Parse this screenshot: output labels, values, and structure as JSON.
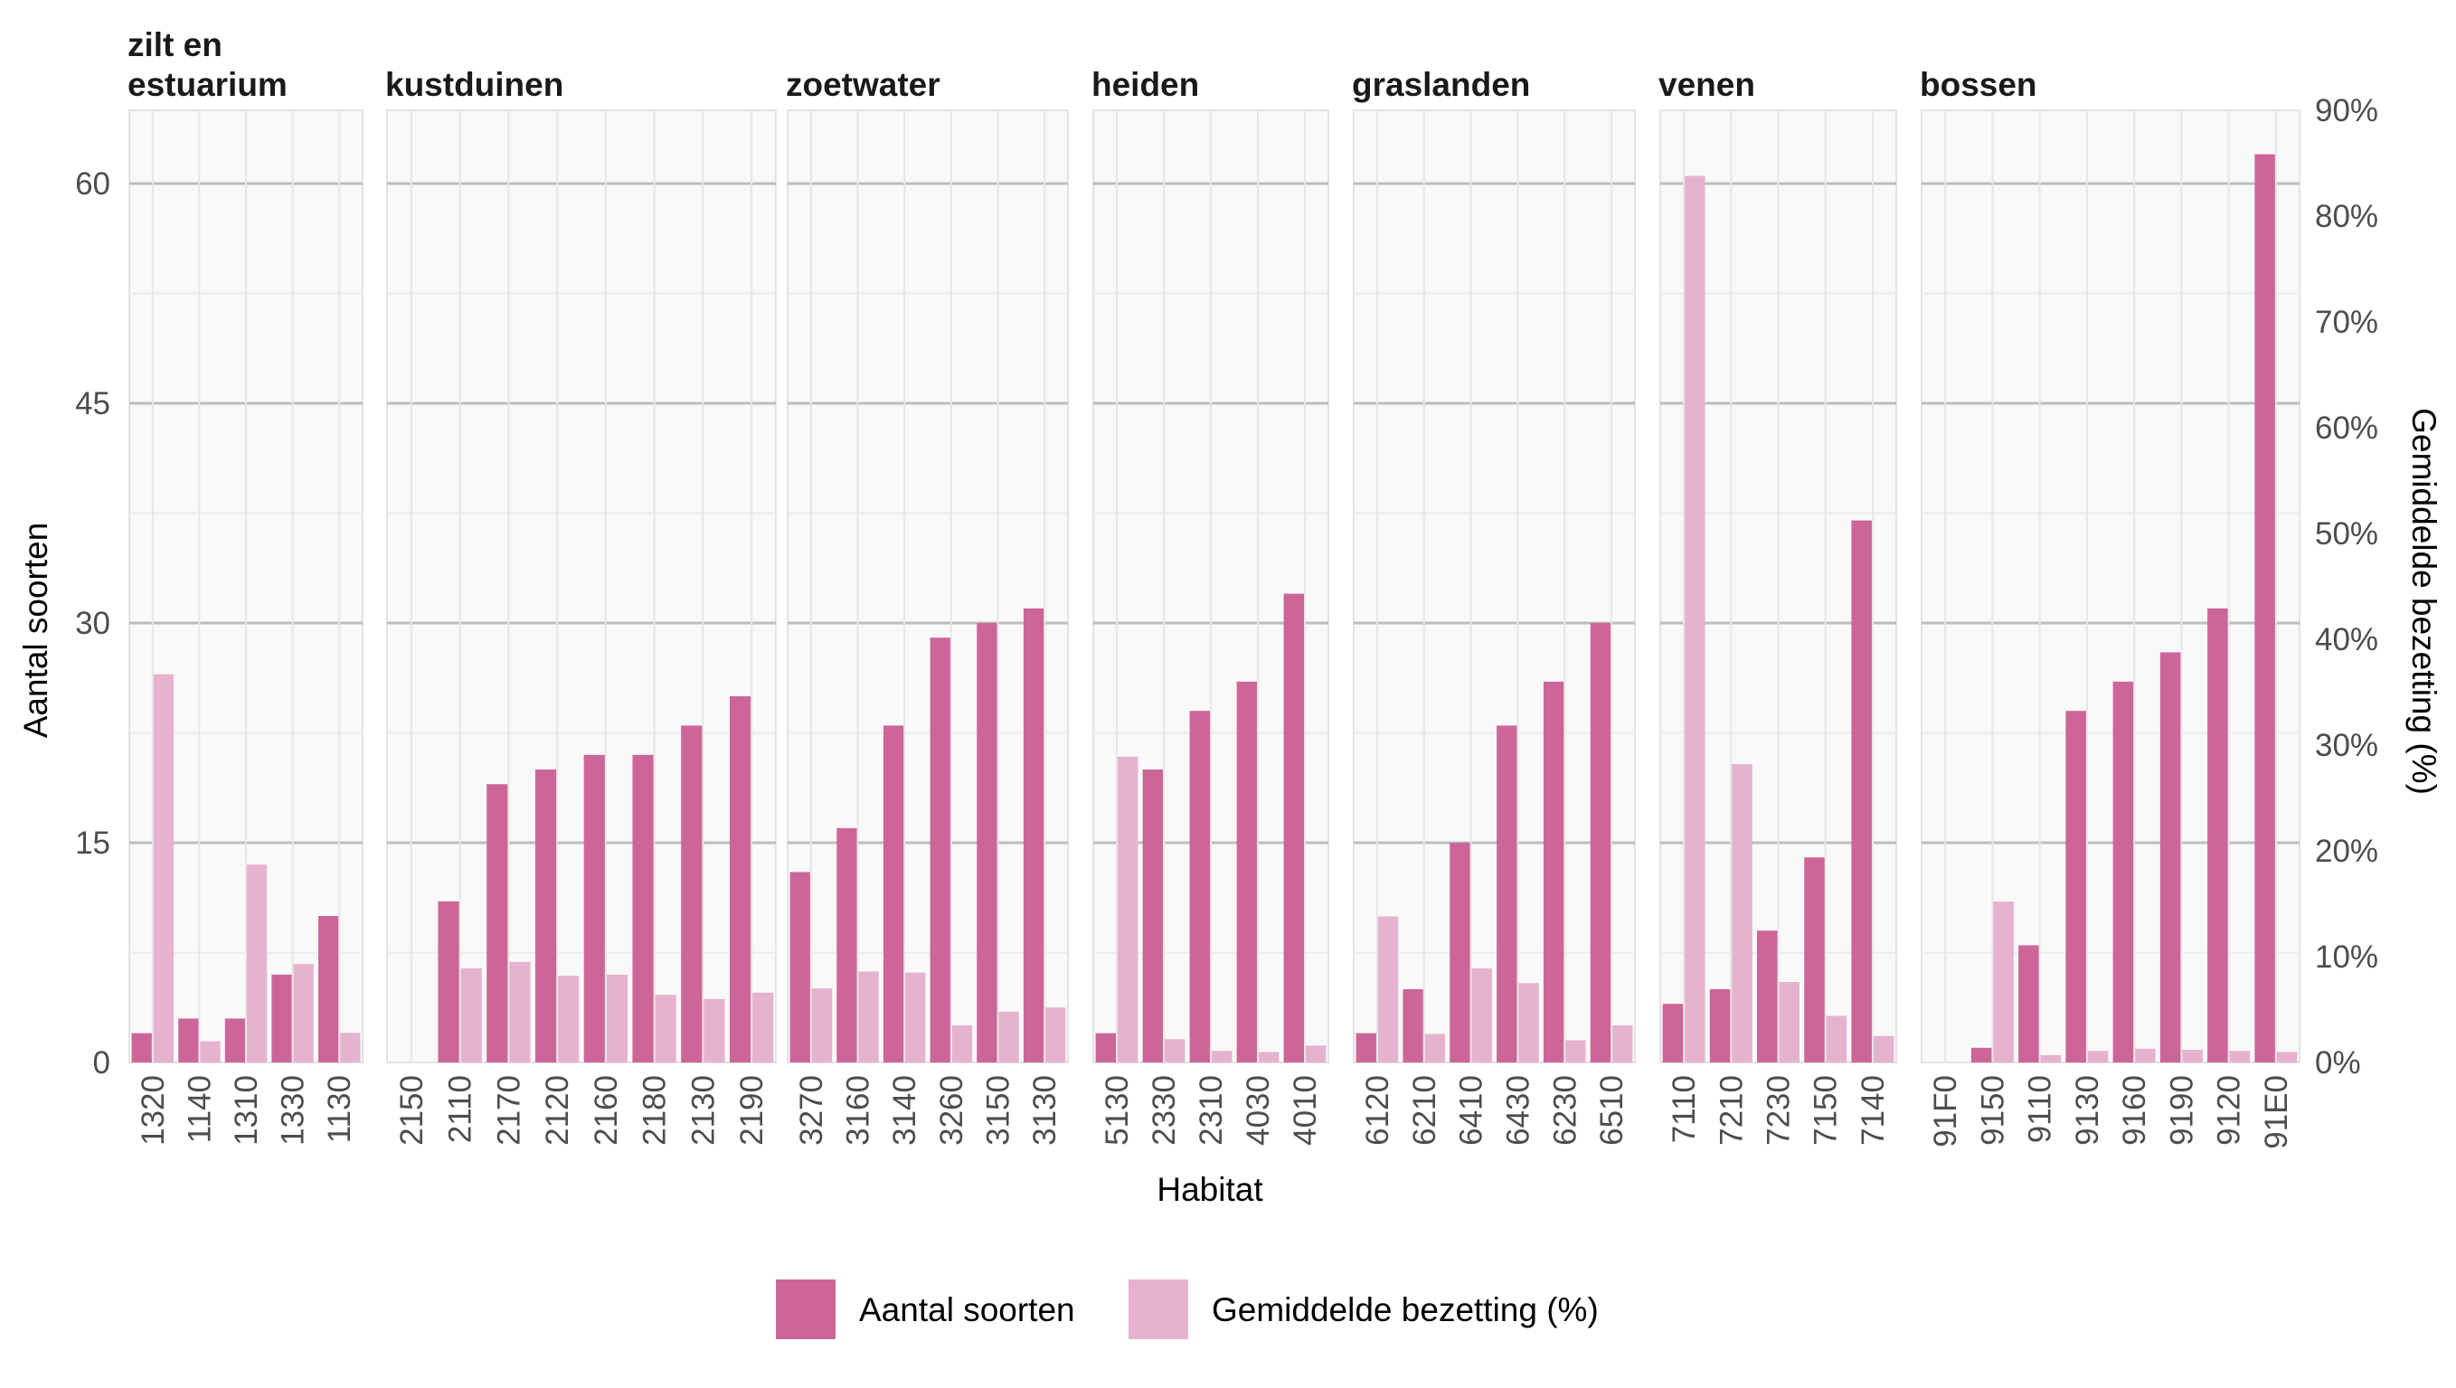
{
  "chart_data": {
    "type": "bar",
    "xlabel": "Habitat",
    "ylabel": "Aantal soorten",
    "y2label": "Gemiddelde bezetting (%)",
    "ylim": [
      0,
      65
    ],
    "y_ticks": [
      "0",
      "15",
      "30",
      "45",
      "60"
    ],
    "y2lim": [
      0,
      90
    ],
    "y2_ticks": [
      "0%",
      "10%",
      "20%",
      "30%",
      "40%",
      "50%",
      "60%",
      "70%",
      "80%",
      "90%"
    ],
    "grid": true,
    "legend_position": "bottom",
    "legend": [
      {
        "label": "Aantal soorten",
        "color": "#CC6699"
      },
      {
        "label": "Gemiddelde bezetting (%)",
        "color": "#E6B3CF"
      }
    ],
    "facets": [
      {
        "title_lines": [
          "zilt en",
          "estuarium"
        ],
        "categories": [
          "1320",
          "1140",
          "1310",
          "1330",
          "1130"
        ],
        "aantal_soorten": [
          2,
          3,
          3,
          6,
          10
        ],
        "gemiddelde_bezetting": [
          36.7,
          2,
          18.7,
          9.3,
          2.8
        ]
      },
      {
        "title_lines": [
          "kustduinen"
        ],
        "categories": [
          "2150",
          "2110",
          "2170",
          "2120",
          "2160",
          "2180",
          "2130",
          "2190"
        ],
        "aantal_soorten": [
          0,
          11,
          19,
          20,
          21,
          21,
          23,
          25
        ],
        "gemiddelde_bezetting": [
          0,
          8.9,
          9.5,
          8.2,
          8.3,
          6.4,
          6,
          6.6
        ]
      },
      {
        "title_lines": [
          "zoetwater"
        ],
        "categories": [
          "3270",
          "3160",
          "3140",
          "3260",
          "3150",
          "3130"
        ],
        "aantal_soorten": [
          13,
          16,
          23,
          29,
          30,
          31
        ],
        "gemiddelde_bezetting": [
          7,
          8.6,
          8.5,
          3.5,
          4.8,
          5.2
        ]
      },
      {
        "title_lines": [
          "heiden"
        ],
        "categories": [
          "5130",
          "2330",
          "2310",
          "4030",
          "4010"
        ],
        "aantal_soorten": [
          2,
          20,
          24,
          26,
          32
        ],
        "gemiddelde_bezetting": [
          28.9,
          2.2,
          1.1,
          1,
          1.6
        ]
      },
      {
        "title_lines": [
          "graslanden"
        ],
        "categories": [
          "6120",
          "6210",
          "6410",
          "6430",
          "6230",
          "6510"
        ],
        "aantal_soorten": [
          2,
          5,
          15,
          23,
          26,
          30
        ],
        "gemiddelde_bezetting": [
          13.8,
          2.7,
          8.9,
          7.5,
          2.1,
          3.5
        ]
      },
      {
        "title_lines": [
          "venen"
        ],
        "categories": [
          "7110",
          "7210",
          "7230",
          "7150",
          "7140"
        ],
        "aantal_soorten": [
          4,
          5,
          9,
          14,
          37
        ],
        "gemiddelde_bezetting": [
          83.8,
          28.2,
          7.6,
          4.4,
          2.5
        ]
      },
      {
        "title_lines": [
          "bossen"
        ],
        "categories": [
          "91F0",
          "9150",
          "9110",
          "9130",
          "9160",
          "9190",
          "9120",
          "91E0"
        ],
        "aantal_soorten": [
          0,
          1,
          8,
          24,
          26,
          28,
          31,
          62
        ],
        "gemiddelde_bezetting": [
          0,
          15.2,
          0.7,
          1.1,
          1.3,
          1.2,
          1.1,
          1
        ]
      }
    ]
  }
}
